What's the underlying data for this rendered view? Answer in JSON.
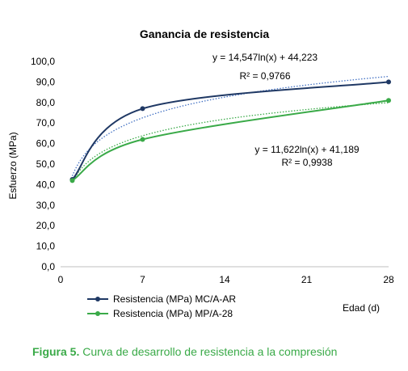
{
  "chart_data": {
    "type": "line",
    "title": "Ganancia de resistencia",
    "xlabel": "Edad (d)",
    "ylabel": "Esfuerzo (MPa)",
    "xlim": [
      0,
      28
    ],
    "ylim": [
      0,
      100
    ],
    "x_ticks": [
      "0",
      "7",
      "14",
      "21",
      "28"
    ],
    "y_ticks": [
      "0,0",
      "10,0",
      "20,0",
      "30,0",
      "40,0",
      "50,0",
      "60,0",
      "70,0",
      "80,0",
      "90,0",
      "100,0"
    ],
    "legend_position": "bottom-left",
    "grid": false,
    "series": [
      {
        "name": "Resistencia (MPa) MC/A-AR",
        "color": "#1f3864",
        "x": [
          1,
          7,
          28
        ],
        "y": [
          42.5,
          77,
          90
        ],
        "trendline": {
          "type": "log",
          "a": 14.547,
          "b": 44.223,
          "color": "#4472c4",
          "equation": "y = 14,547ln(x) + 44,223",
          "r2": "R² = 0,9766"
        }
      },
      {
        "name": "Resistencia (MPa) MP/A-28",
        "color": "#3aaa48",
        "x": [
          1,
          7,
          28
        ],
        "y": [
          42,
          62,
          81
        ],
        "trendline": {
          "type": "log",
          "a": 11.622,
          "b": 41.189,
          "color": "#3aaa48",
          "equation": "y = 11,622ln(x) + 41,189",
          "r2": "R² = 0,9938"
        }
      }
    ]
  },
  "caption": {
    "label": "Figura 5.",
    "text": "Curva de desarrollo de resistencia a la compresión"
  }
}
